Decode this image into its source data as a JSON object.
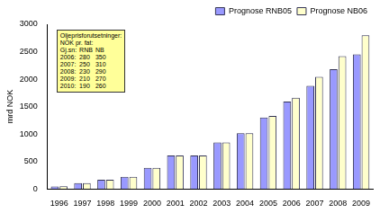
{
  "chart_data": {
    "type": "bar",
    "categories": [
      "1996",
      "1997",
      "1998",
      "1999",
      "2000",
      "2001",
      "2002",
      "2003",
      "2004",
      "2005",
      "2006",
      "2007",
      "2008",
      "2009"
    ],
    "series": [
      {
        "name": "Prognose RNB05",
        "color": "#9999ff",
        "values": [
          45,
          105,
          165,
          220,
          385,
          610,
          610,
          845,
          1015,
          1300,
          1590,
          1880,
          2180,
          2450
        ]
      },
      {
        "name": "Prognose NB06",
        "color": "#ffffcc",
        "values": [
          48,
          105,
          165,
          220,
          385,
          610,
          610,
          845,
          1015,
          1330,
          1660,
          2040,
          2420,
          2800
        ]
      }
    ],
    "y_label": "mrd NOK",
    "ylim": [
      0,
      3000
    ],
    "yticks": [
      0,
      500,
      1000,
      1500,
      2000,
      2500,
      3000
    ],
    "grid": false,
    "legend": "top-right",
    "annotation": {
      "title": [
        "Oljeprisforutsetninger:",
        "NOK pr. fat:"
      ],
      "header": [
        "Gj.sn:",
        "RNB",
        "NB"
      ],
      "rows": [
        [
          "2006:",
          280,
          350
        ],
        [
          "2007:",
          250,
          310
        ],
        [
          "2008:",
          230,
          290
        ],
        [
          "2009:",
          210,
          270
        ],
        [
          "2010:",
          190,
          260
        ]
      ]
    }
  }
}
